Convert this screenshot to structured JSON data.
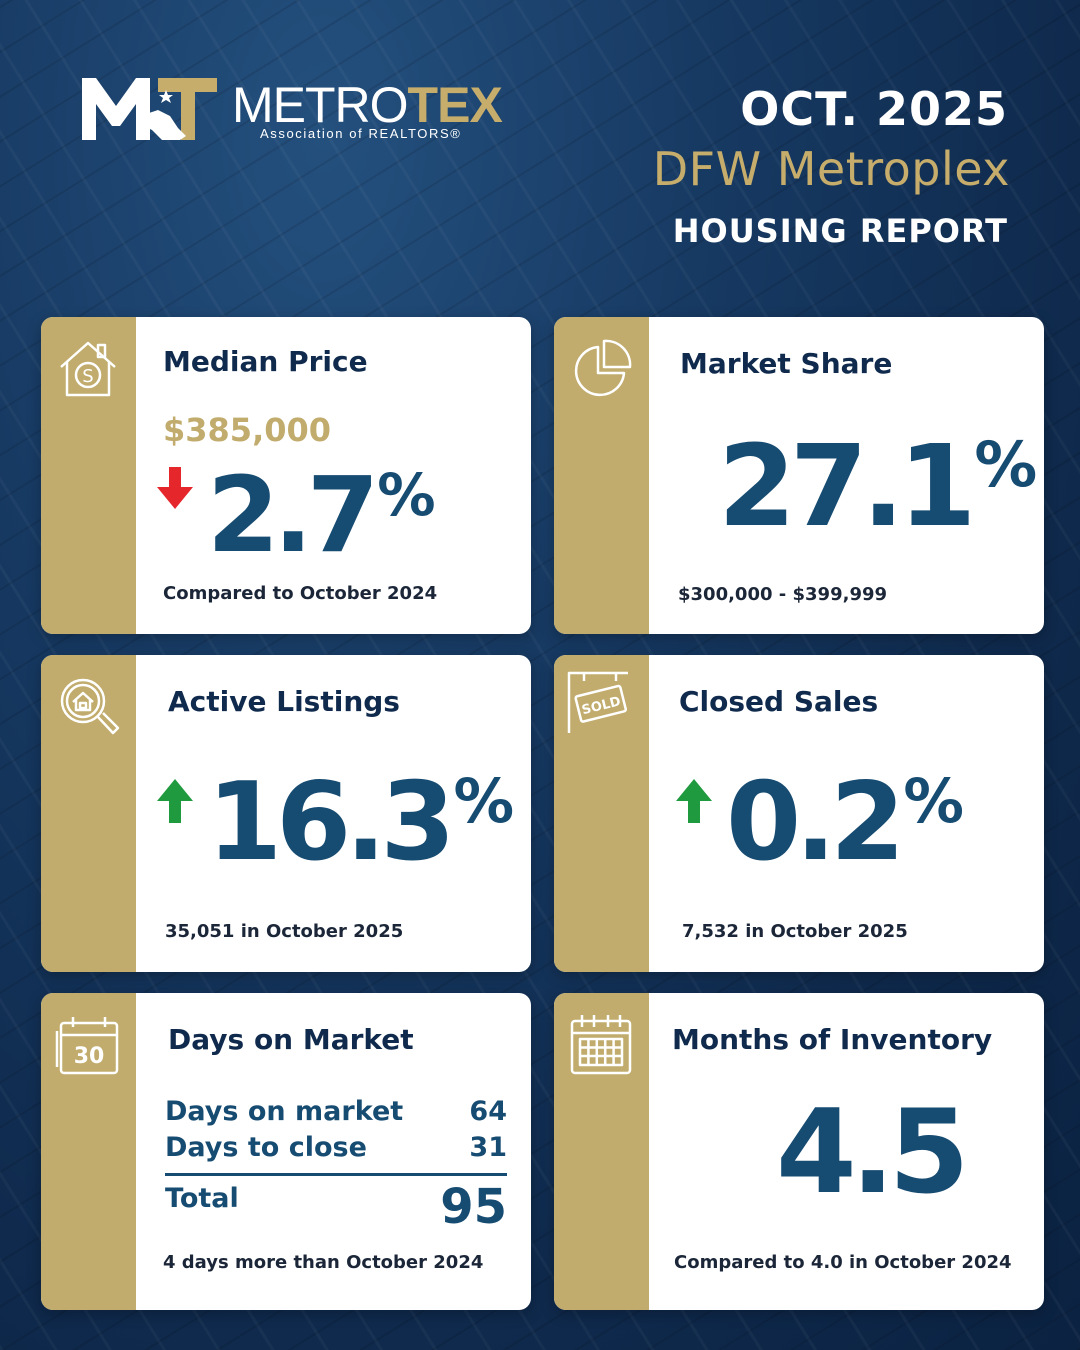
{
  "header": {
    "logo": {
      "wordmark_part1": "METRO",
      "wordmark_part2": "TEX",
      "subtitle": "Association of REALTORS®",
      "mark_icon": "metrotex-mt-texas-icon"
    },
    "date": "OCT. 2025",
    "region": "DFW Metroplex",
    "report_title": "HOUSING REPORT"
  },
  "colors": {
    "navy": "#0f2a4d",
    "gold": "#c1ac6d",
    "value_blue": "#164b72",
    "up_green": "#1f9a3e",
    "down_red": "#e5262b"
  },
  "cards": {
    "median_price": {
      "title": "Median Price",
      "icon": "house-dollar-icon",
      "price": "$385,000",
      "change": "2.7",
      "change_unit": "%",
      "direction": "down",
      "footnote": "Compared to October 2024"
    },
    "market_share": {
      "title": "Market Share",
      "icon": "pie-chart-icon",
      "value": "27.1",
      "value_unit": "%",
      "footnote": "$300,000 - $399,999"
    },
    "active_listings": {
      "title": "Active Listings",
      "icon": "house-search-icon",
      "change": "16.3",
      "change_unit": "%",
      "direction": "up",
      "footnote": "35,051 in October 2025"
    },
    "closed_sales": {
      "title": "Closed Sales",
      "icon": "sold-sign-icon",
      "sign_text": "SOLD",
      "change": "0.2",
      "change_unit": "%",
      "direction": "up",
      "footnote": "7,532 in October 2025"
    },
    "days_on_market": {
      "title": "Days on Market",
      "icon": "calendar-30-icon",
      "icon_text": "30",
      "rows": [
        {
          "label": "Days on market",
          "value": "64"
        },
        {
          "label": "Days to close",
          "value": "31"
        }
      ],
      "total_label": "Total",
      "total_value": "95",
      "footnote": "4 days more than October 2024"
    },
    "months_inventory": {
      "title": "Months of Inventory",
      "icon": "calendar-grid-icon",
      "value": "4.5",
      "footnote": "Compared to 4.0 in October 2024"
    }
  }
}
